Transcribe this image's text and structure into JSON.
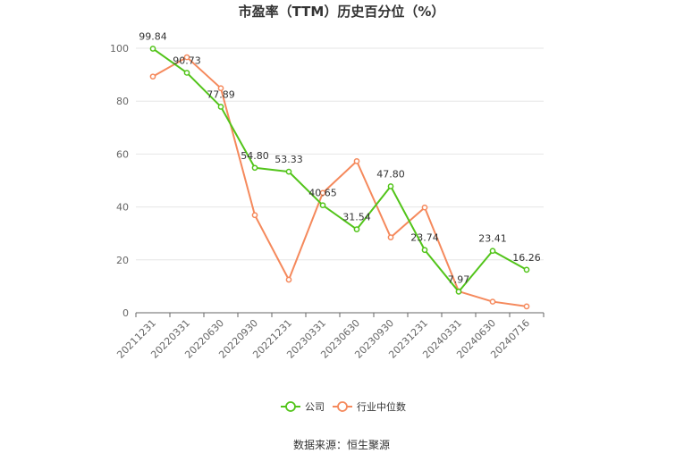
{
  "chart_data": {
    "type": "line",
    "title": "市盈率（TTM）历史百分位（%）",
    "categories": [
      "20211231",
      "20220331",
      "20220630",
      "20220930",
      "20221231",
      "20230331",
      "20230630",
      "20230930",
      "20231231",
      "20240331",
      "20240630",
      "20240716"
    ],
    "ylim": [
      0,
      100
    ],
    "yticks": [
      0,
      20,
      40,
      60,
      80,
      100
    ],
    "grid": true,
    "legend_position": "bottom",
    "series": [
      {
        "name": "公司",
        "color": "#52c41a",
        "values": [
          99.84,
          90.73,
          77.89,
          54.8,
          53.33,
          40.65,
          31.54,
          47.8,
          23.74,
          7.97,
          23.41,
          16.26
        ],
        "labels": [
          "99.84",
          "90.73",
          "77.89",
          "54.80",
          "53.33",
          "40.65",
          "31.54",
          "47.80",
          "23.74",
          "7.97",
          "23.41",
          "16.26"
        ]
      },
      {
        "name": "行业中位数",
        "color": "#f5895c",
        "values": [
          89.3,
          96.6,
          84.9,
          36.9,
          12.5,
          45.3,
          57.3,
          28.5,
          39.8,
          8.1,
          4.2,
          2.4
        ]
      }
    ]
  },
  "source": "数据来源：恒生聚源"
}
